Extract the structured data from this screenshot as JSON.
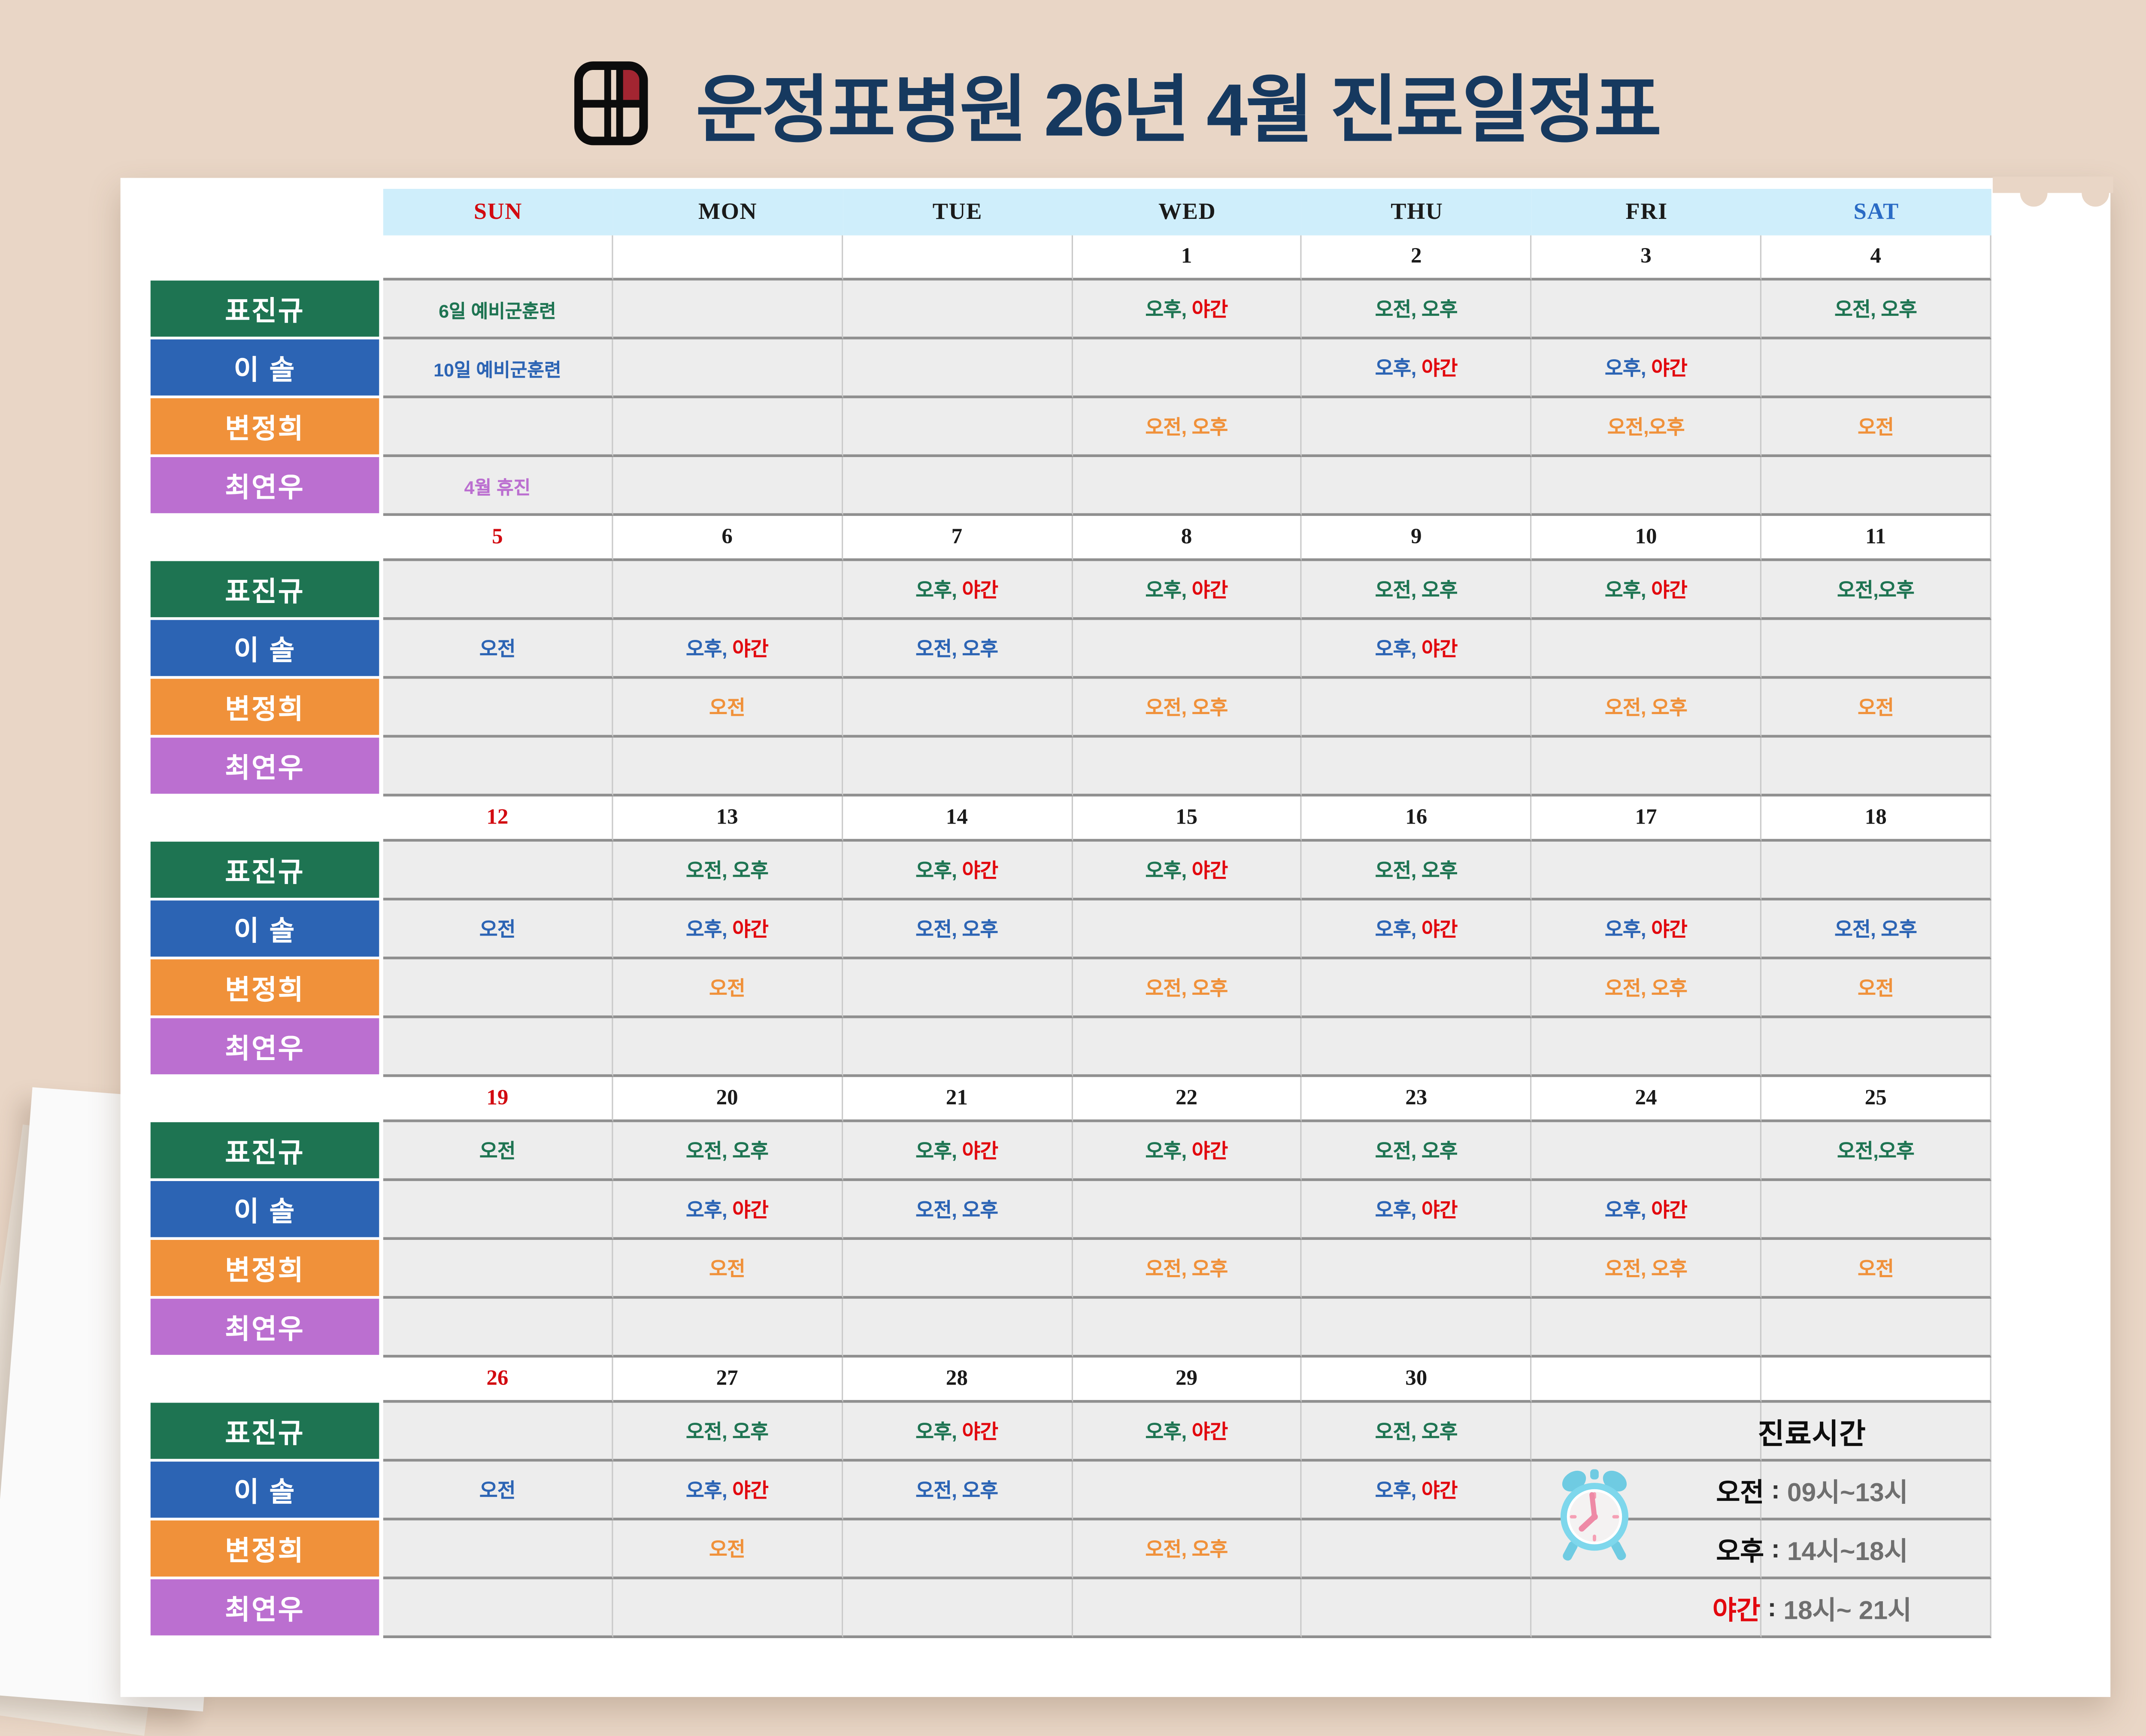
{
  "title": "운정표병원 26년 4월 진료일정표",
  "title_icon": "calendar-grid-icon",
  "colors": {
    "background": "#e9d6c6",
    "paper": "#ffffff",
    "header_bg": "#cfeefb",
    "cell_bg": "#ededed",
    "row_line": "#8f8f8f",
    "col_line": "#c9c9c9",
    "title": "#16395f",
    "night": "#e2080e",
    "sunday": "#d20a10",
    "saturday": "#2a6bc5",
    "weekday": "#1a1a1a",
    "time_gray": "#6f6f6f",
    "icon_red": "#a32531"
  },
  "weekday_header": [
    {
      "label": "SUN",
      "color": "#d20a10"
    },
    {
      "label": "MON",
      "color": "#1a1a1a"
    },
    {
      "label": "TUE",
      "color": "#1a1a1a"
    },
    {
      "label": "WED",
      "color": "#1a1a1a"
    },
    {
      "label": "THU",
      "color": "#1a1a1a"
    },
    {
      "label": "FRI",
      "color": "#1a1a1a"
    },
    {
      "label": "SAT",
      "color": "#2a6bc5"
    }
  ],
  "doctors": [
    {
      "name": "표진규",
      "color": "#1e7452"
    },
    {
      "name": "이 솔",
      "color": "#2c64b4"
    },
    {
      "name": "변정희",
      "color": "#f0913a"
    },
    {
      "name": "최연우",
      "color": "#bb6fd0"
    }
  ],
  "weeks": [
    {
      "dates": [
        "",
        "",
        "",
        "1",
        "2",
        "3",
        "4"
      ],
      "rows": [
        [
          {
            "note": "6일 예비군훈련"
          },
          "",
          "",
          "오후, 야간",
          "오전, 오후",
          "",
          "오전, 오후"
        ],
        [
          {
            "note": "10일 예비군훈련"
          },
          "",
          "",
          "",
          "오후, 야간",
          "오후, 야간",
          ""
        ],
        [
          "",
          "",
          "",
          "오전, 오후",
          "",
          "오전,오후",
          "오전"
        ],
        [
          {
            "note": "4월 휴진"
          },
          "",
          "",
          "",
          "",
          "",
          ""
        ]
      ]
    },
    {
      "dates": [
        "5",
        "6",
        "7",
        "8",
        "9",
        "10",
        "11"
      ],
      "rows": [
        [
          "",
          "",
          "오후, 야간",
          "오후, 야간",
          "오전, 오후",
          "오후, 야간",
          "오전,오후"
        ],
        [
          "오전",
          "오후, 야간",
          "오전, 오후",
          "",
          "오후, 야간",
          "",
          ""
        ],
        [
          "",
          "오전",
          "",
          "오전, 오후",
          "",
          "오전, 오후",
          "오전"
        ],
        [
          "",
          "",
          "",
          "",
          "",
          "",
          ""
        ]
      ]
    },
    {
      "dates": [
        "12",
        "13",
        "14",
        "15",
        "16",
        "17",
        "18"
      ],
      "rows": [
        [
          "",
          "오전, 오후",
          "오후, 야간",
          "오후, 야간",
          "오전, 오후",
          "",
          ""
        ],
        [
          "오전",
          "오후, 야간",
          "오전, 오후",
          "",
          "오후, 야간",
          "오후, 야간",
          "오전, 오후"
        ],
        [
          "",
          "오전",
          "",
          "오전, 오후",
          "",
          "오전, 오후",
          "오전"
        ],
        [
          "",
          "",
          "",
          "",
          "",
          "",
          ""
        ]
      ]
    },
    {
      "dates": [
        "19",
        "20",
        "21",
        "22",
        "23",
        "24",
        "25"
      ],
      "rows": [
        [
          "오전",
          "오전, 오후",
          "오후, 야간",
          "오후, 야간",
          "오전, 오후",
          "",
          "오전,오후"
        ],
        [
          "",
          "오후, 야간",
          "오전, 오후",
          "",
          "오후, 야간",
          "오후, 야간",
          ""
        ],
        [
          "",
          "오전",
          "",
          "오전, 오후",
          "",
          "오전, 오후",
          "오전"
        ],
        [
          "",
          "",
          "",
          "",
          "",
          "",
          ""
        ]
      ]
    },
    {
      "dates": [
        "26",
        "27",
        "28",
        "29",
        "30",
        "",
        ""
      ],
      "rows": [
        [
          "",
          "오전, 오후",
          "오후, 야간",
          "오후, 야간",
          "오전, 오후",
          "",
          ""
        ],
        [
          "오전",
          "오후, 야간",
          "오전, 오후",
          "",
          "오후, 야간",
          "",
          ""
        ],
        [
          "",
          "오전",
          "",
          "오전, 오후",
          "",
          "",
          ""
        ],
        [
          "",
          "",
          "",
          "",
          "",
          "",
          ""
        ]
      ]
    }
  ],
  "legend": {
    "title": "진료시간",
    "icon": "alarm-clock-icon",
    "items": [
      {
        "label": "오전",
        "color": "#0e0e0e",
        "time": "09시~13시"
      },
      {
        "label": "오후",
        "color": "#0e0e0e",
        "time": "14시~18시"
      },
      {
        "label": "야간",
        "color": "#e2080e",
        "time": "18시~ 21시"
      }
    ]
  }
}
